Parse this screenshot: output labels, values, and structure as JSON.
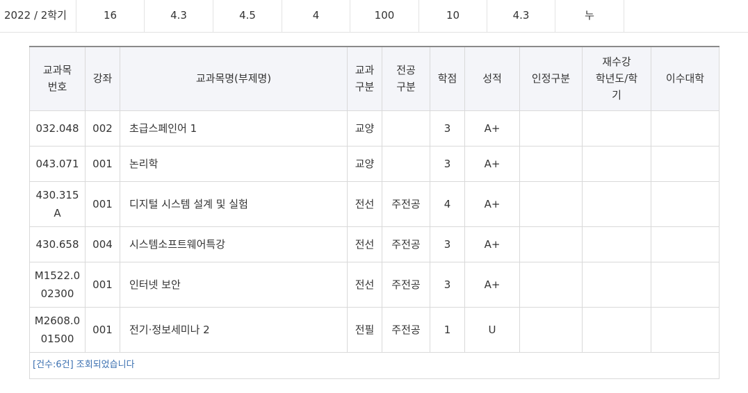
{
  "summary": {
    "cells": [
      "2022 / 2학기",
      "16",
      "4.3",
      "4.5",
      "4",
      "100",
      "10",
      "4.3",
      "누"
    ]
  },
  "table": {
    "headers": {
      "course_no": "교과목\n번호",
      "section": "강좌",
      "course_name": "교과목명(부제명)",
      "course_type": "교과\n구분",
      "major_type": "전공\n구분",
      "credits": "학점",
      "grade": "성적",
      "recognition": "인정구분",
      "retake": "재수강\n학년도/학\n기",
      "college": "이수대학"
    },
    "rows": [
      {
        "course_no": "032.048",
        "section": "002",
        "course_name": "초급스페인어 1",
        "course_type": "교양",
        "major_type": "",
        "credits": "3",
        "grade": "A+",
        "recognition": "",
        "retake": "",
        "college": ""
      },
      {
        "course_no": "043.071",
        "section": "001",
        "course_name": "논리학",
        "course_type": "교양",
        "major_type": "",
        "credits": "3",
        "grade": "A+",
        "recognition": "",
        "retake": "",
        "college": ""
      },
      {
        "course_no": "430.315\nA",
        "section": "001",
        "course_name": "디지털 시스템 설계 및 실험",
        "course_type": "전선",
        "major_type": "주전공",
        "credits": "4",
        "grade": "A+",
        "recognition": "",
        "retake": "",
        "college": ""
      },
      {
        "course_no": "430.658",
        "section": "004",
        "course_name": "시스템소프트웨어특강",
        "course_type": "전선",
        "major_type": "주전공",
        "credits": "3",
        "grade": "A+",
        "recognition": "",
        "retake": "",
        "college": ""
      },
      {
        "course_no": "M1522.0\n02300",
        "section": "001",
        "course_name": "인터넷 보안",
        "course_type": "전선",
        "major_type": "주전공",
        "credits": "3",
        "grade": "A+",
        "recognition": "",
        "retake": "",
        "college": ""
      },
      {
        "course_no": "M2608.0\n01500",
        "section": "001",
        "course_name": "전기·정보세미나 2",
        "course_type": "전필",
        "major_type": "주전공",
        "credits": "1",
        "grade": "U",
        "recognition": "",
        "retake": "",
        "college": ""
      }
    ],
    "footer_text": "[건수:6건] 조회되었습니다"
  }
}
